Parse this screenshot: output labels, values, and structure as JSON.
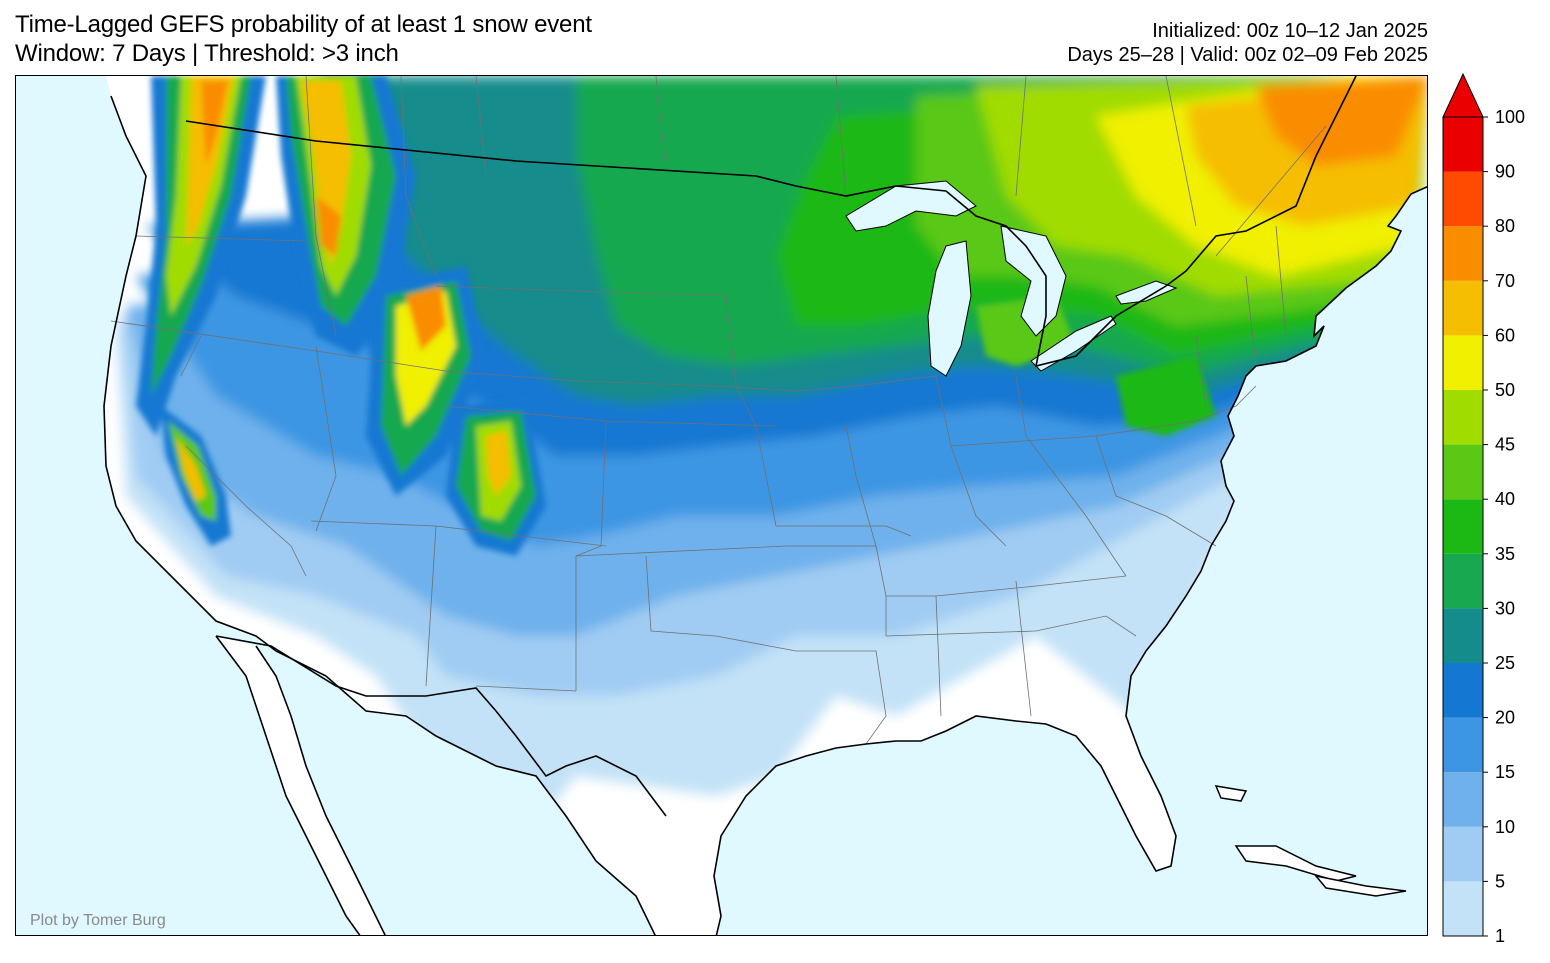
{
  "header": {
    "title_line1": "Time-Lagged GEFS probability of at least 1 snow event",
    "title_line2": "Window: 7 Days | Threshold: >3 inch",
    "init_line1": "Initialized: 00z 10–12 Jan 2025",
    "init_line2": "Days 25–28 | Valid: 00z 02–09 Feb 2025"
  },
  "map": {
    "credit": "Plot by Tomer Burg",
    "ocean_color": "#e0f8ff",
    "land_color": "#ffffff"
  },
  "colorbar": {
    "labels": [
      "1",
      "5",
      "10",
      "15",
      "20",
      "25",
      "30",
      "35",
      "40",
      "45",
      "50",
      "60",
      "70",
      "80",
      "90",
      "100"
    ],
    "colors": [
      "#c3e2f7",
      "#a0ccf3",
      "#6eb1ec",
      "#3c96e3",
      "#1478d2",
      "#148c8c",
      "#18a850",
      "#1cb814",
      "#5ac814",
      "#a0dc00",
      "#f0f000",
      "#f5be00",
      "#fa8c00",
      "#ff4b00",
      "#eb0000"
    ],
    "extend_color": "#eb0000"
  }
}
